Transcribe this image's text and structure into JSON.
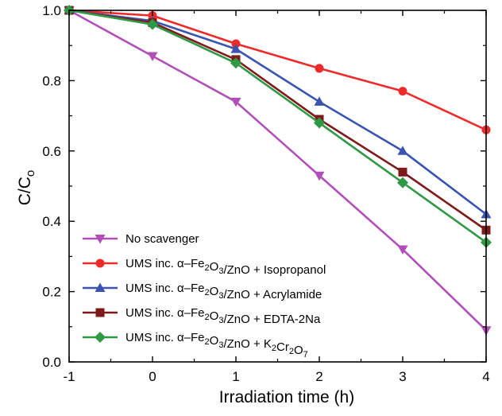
{
  "chart_data": {
    "type": "line",
    "xlabel": "Irradiation time (h)",
    "ylabel": {
      "main": "C/C",
      "sub": "o"
    },
    "xlim": [
      -1,
      4
    ],
    "ylim": [
      0,
      1.0
    ],
    "x_ticks": [
      -1,
      0,
      1,
      2,
      3,
      4
    ],
    "y_ticks": [
      0.0,
      0.2,
      0.4,
      0.6,
      0.8,
      1.0
    ],
    "x_tick_labels": [
      "-1",
      "0",
      "1",
      "2",
      "3",
      "4"
    ],
    "y_tick_labels": [
      "0.0",
      "0.2",
      "0.4",
      "0.6",
      "0.8",
      "1.0"
    ],
    "grid": false,
    "legend_position": "bottom-left",
    "x": [
      -1,
      0,
      1,
      2,
      3,
      4
    ],
    "series": [
      {
        "name": "No scavenger",
        "legend_parts": [
          {
            "t": "No scavenger",
            "s": "n"
          }
        ],
        "color": "#b04fb7",
        "marker": "triangle-down",
        "values": [
          1.0,
          0.87,
          0.74,
          0.53,
          0.32,
          0.09
        ]
      },
      {
        "name": "UMS inc. α–Fe2O3/ZnO + Isopropanol",
        "legend_parts": [
          {
            "t": "UMS inc. α–Fe",
            "s": "n"
          },
          {
            "t": "2",
            "s": "sub"
          },
          {
            "t": "O",
            "s": "n"
          },
          {
            "t": "3",
            "s": "sub"
          },
          {
            "t": "/ZnO + Isopropanol",
            "s": "n"
          }
        ],
        "color": "#ee2b2b",
        "marker": "circle",
        "values": [
          1.0,
          0.985,
          0.905,
          0.835,
          0.77,
          0.66
        ]
      },
      {
        "name": "UMS inc. α–Fe2O3/ZnO + Acrylamide",
        "legend_parts": [
          {
            "t": "UMS inc. α–Fe",
            "s": "n"
          },
          {
            "t": "2",
            "s": "sub"
          },
          {
            "t": "O",
            "s": "n"
          },
          {
            "t": "3",
            "s": "sub"
          },
          {
            "t": "/ZnO + Acrylamide",
            "s": "n"
          }
        ],
        "color": "#3b54b0",
        "marker": "triangle-up",
        "values": [
          1.0,
          0.97,
          0.89,
          0.74,
          0.6,
          0.42
        ]
      },
      {
        "name": "UMS inc. α–Fe2O3/ZnO + EDTA-2Na",
        "legend_parts": [
          {
            "t": "UMS inc. α–Fe",
            "s": "n"
          },
          {
            "t": "2",
            "s": "sub"
          },
          {
            "t": "O",
            "s": "n"
          },
          {
            "t": "3",
            "s": "sub"
          },
          {
            "t": "/ZnO + EDTA-2Na",
            "s": "n"
          }
        ],
        "color": "#7f1a1a",
        "marker": "square",
        "values": [
          1.0,
          0.965,
          0.86,
          0.69,
          0.54,
          0.375
        ]
      },
      {
        "name": "UMS inc. α–Fe2O3/ZnO + K2Cr2O7",
        "legend_parts": [
          {
            "t": "UMS inc. α–Fe",
            "s": "n"
          },
          {
            "t": "2",
            "s": "sub"
          },
          {
            "t": "O",
            "s": "n"
          },
          {
            "t": "3",
            "s": "sub"
          },
          {
            "t": "/ZnO + K",
            "s": "n"
          },
          {
            "t": "2",
            "s": "sub"
          },
          {
            "t": "Cr",
            "s": "n"
          },
          {
            "t": "2",
            "s": "sub"
          },
          {
            "t": "O",
            "s": "n"
          },
          {
            "t": "7",
            "s": "sub"
          }
        ],
        "color": "#2e9a45",
        "marker": "diamond",
        "values": [
          1.0,
          0.96,
          0.85,
          0.68,
          0.51,
          0.34
        ]
      }
    ]
  }
}
